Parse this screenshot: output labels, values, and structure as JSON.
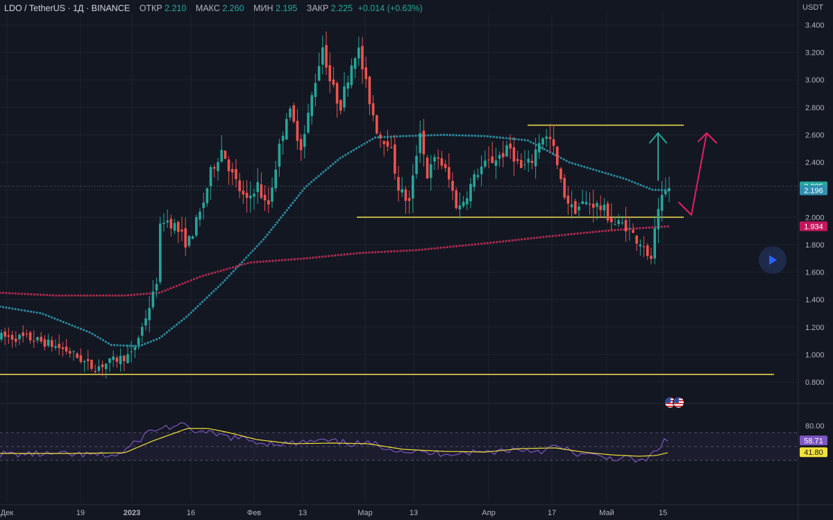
{
  "header": {
    "symbol": "LDO / TetherUS · 1Д · BINANCE",
    "open_label": "ОТКР",
    "open": "2.210",
    "high_label": "МАКС",
    "high": "2.260",
    "low_label": "МИН",
    "low": "2.195",
    "close_label": "ЗАКР",
    "close": "2.225",
    "change": "+0.014 (+0.63%)"
  },
  "axis_unit": "USDT",
  "chart_data": [
    {
      "type": "candlestick",
      "price_ticks": [
        "3.400",
        "3.200",
        "3.000",
        "2.800",
        "2.600",
        "2.400",
        "2.200",
        "2.000",
        "1.800",
        "1.600",
        "1.400",
        "1.200",
        "1.000",
        "0.800"
      ],
      "ylim": [
        0.75,
        3.48
      ],
      "x_ticks": [
        "Дек",
        "19",
        "2023",
        "16",
        "Фев",
        "13",
        "Мар",
        "13",
        "Апр",
        "17",
        "Май",
        "15"
      ],
      "price_badges": [
        {
          "value": "2.225",
          "color": "#26a69a"
        },
        {
          "value": "2.196",
          "color": "#2f8fb0"
        },
        {
          "value": "1.934",
          "color": "#c2185b"
        }
      ],
      "moving_averages": [
        {
          "color": "#2a8a9e",
          "points": [
            [
              0,
              1.35
            ],
            [
              60,
              1.3
            ],
            [
              130,
              1.16
            ],
            [
              160,
              1.07
            ],
            [
              200,
              1.06
            ],
            [
              230,
              1.12
            ],
            [
              270,
              1.28
            ],
            [
              320,
              1.52
            ],
            [
              380,
              1.84
            ],
            [
              440,
              2.22
            ],
            [
              490,
              2.43
            ],
            [
              540,
              2.58
            ],
            [
              580,
              2.59
            ],
            [
              640,
              2.6
            ],
            [
              700,
              2.59
            ],
            [
              760,
              2.56
            ],
            [
              820,
              2.4
            ],
            [
              860,
              2.34
            ],
            [
              900,
              2.28
            ],
            [
              940,
              2.2
            ],
            [
              965,
              2.196
            ]
          ]
        },
        {
          "color": "#b02a4f",
          "points": [
            [
              0,
              1.45
            ],
            [
              80,
              1.43
            ],
            [
              180,
              1.43
            ],
            [
              230,
              1.45
            ],
            [
              290,
              1.57
            ],
            [
              360,
              1.67
            ],
            [
              440,
              1.7
            ],
            [
              520,
              1.74
            ],
            [
              600,
              1.76
            ],
            [
              700,
              1.81
            ],
            [
              790,
              1.86
            ],
            [
              870,
              1.9
            ],
            [
              920,
              1.92
            ],
            [
              965,
              1.934
            ]
          ]
        }
      ],
      "horizontal_levels": [
        {
          "value": 2.67,
          "from": 760,
          "to": 985,
          "color": "#e8d44d"
        },
        {
          "value": 2.0,
          "from": 514,
          "to": 985,
          "color": "#e8d44d"
        },
        {
          "value": 0.855,
          "from": 0,
          "to": 1115,
          "color": "#e8d44d"
        }
      ],
      "up_color": "#26a69a",
      "down_color": "#ef5350"
    },
    {
      "type": "line",
      "name": "RSI",
      "ylim": [
        18,
        90
      ],
      "ticks": [
        "80.00"
      ],
      "band_color": "#7e57c2",
      "badges": [
        {
          "value": "58.71",
          "color": "#7e57c2",
          "text_color": "#ffffff"
        },
        {
          "value": "41.80",
          "color": "#f2e13a",
          "text_color": "#131722"
        }
      ]
    }
  ],
  "annotations": {
    "green_arrow_color": "#26a69a",
    "pink_arrow_color": "#e91e63"
  }
}
